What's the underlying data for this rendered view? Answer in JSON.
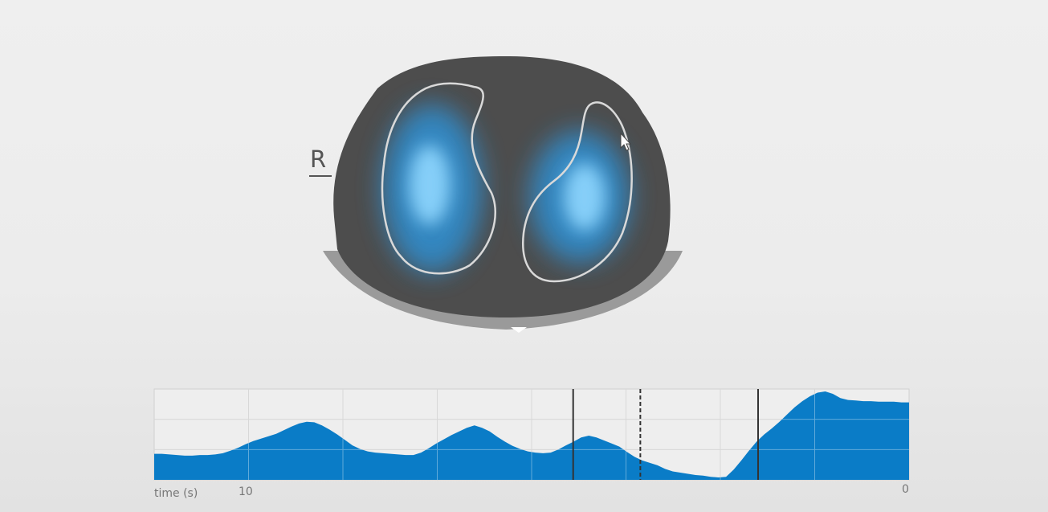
{
  "view": {
    "orientation_label": "R",
    "colors": {
      "thorax": "#4d4d4d",
      "thorax_shadow": "#9a9a9a",
      "ventilation": "#2a9ae6",
      "ventilation_core": "#8fd7ff",
      "lung_outline": "#d9d9d9",
      "waveform_fill": "#0a7cc7",
      "grid": "#c4c4c4",
      "marker": "#333333"
    }
  },
  "chart_data": {
    "type": "area",
    "xlabel": "time (s)",
    "x_tick_labels": [
      "10",
      "0"
    ],
    "grid": true,
    "series": [
      {
        "values": [
          0.43,
          0.43,
          0.42,
          0.41,
          0.4,
          0.4,
          0.41,
          0.41,
          0.42,
          0.44,
          0.48,
          0.53,
          0.59,
          0.64,
          0.68,
          0.72,
          0.76,
          0.82,
          0.88,
          0.93,
          0.96,
          0.95,
          0.9,
          0.83,
          0.75,
          0.66,
          0.57,
          0.51,
          0.47,
          0.45,
          0.44,
          0.43,
          0.42,
          0.41,
          0.41,
          0.45,
          0.52,
          0.6,
          0.67,
          0.74,
          0.8,
          0.86,
          0.9,
          0.86,
          0.8,
          0.71,
          0.63,
          0.56,
          0.51,
          0.47,
          0.45,
          0.44,
          0.45,
          0.5,
          0.57,
          0.63,
          0.7,
          0.73,
          0.7,
          0.65,
          0.6,
          0.55,
          0.46,
          0.38,
          0.32,
          0.28,
          0.24,
          0.18,
          0.14,
          0.12,
          0.1,
          0.08,
          0.07,
          0.05,
          0.04,
          0.05,
          0.17,
          0.32,
          0.48,
          0.63,
          0.75,
          0.85,
          0.96,
          1.08,
          1.2,
          1.3,
          1.38,
          1.44,
          1.46,
          1.42,
          1.35,
          1.32,
          1.31,
          1.3,
          1.3,
          1.29,
          1.29,
          1.29,
          1.28,
          1.28
        ]
      }
    ],
    "markers": [
      {
        "style": "solid",
        "position": 0.555
      },
      {
        "style": "dashed",
        "position": 0.644
      },
      {
        "style": "solid",
        "position": 0.8
      }
    ]
  }
}
